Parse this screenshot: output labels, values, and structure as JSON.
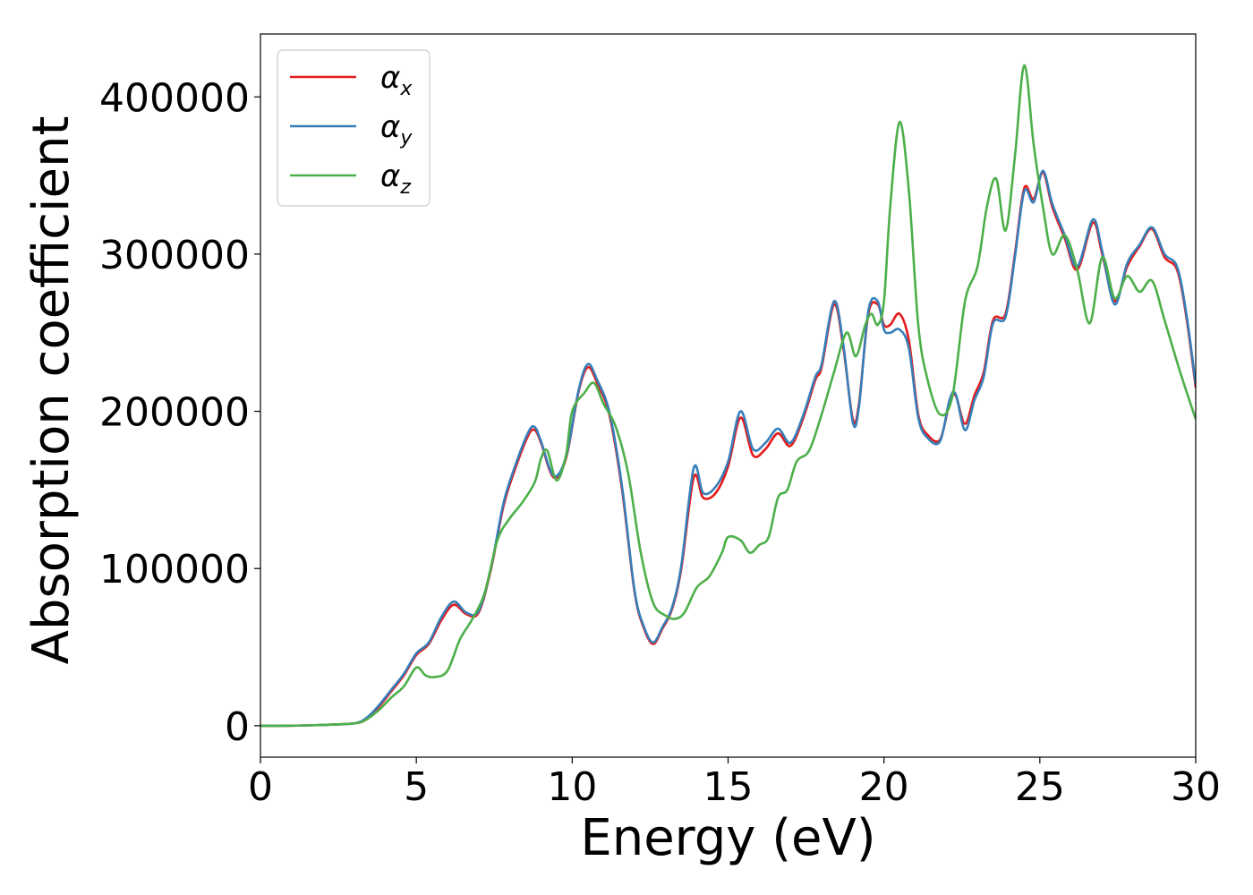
{
  "chart_data": {
    "type": "line",
    "xlabel": "Energy (eV)",
    "ylabel": "Absorption coefficient",
    "xlim": [
      0,
      30
    ],
    "ylim": [
      -20000,
      440000
    ],
    "xticks": [
      0,
      5,
      10,
      15,
      20,
      25,
      30
    ],
    "yticks": [
      0,
      100000,
      200000,
      300000,
      400000
    ],
    "xtick_labels": [
      "0",
      "5",
      "10",
      "15",
      "20",
      "25",
      "30"
    ],
    "ytick_labels": [
      "0",
      "100000",
      "200000",
      "300000",
      "400000"
    ],
    "grid": false,
    "legend_position": "top-left",
    "series": [
      {
        "name": "α_x",
        "label_base": "α",
        "label_sub": "x",
        "color": "#e41a1c",
        "x": [
          0,
          1,
          2,
          3,
          3.4,
          3.8,
          4.2,
          4.6,
          5.0,
          5.4,
          5.8,
          6.2,
          6.6,
          7.0,
          7.4,
          7.8,
          8.2,
          8.6,
          8.8,
          9.0,
          9.4,
          9.8,
          10.2,
          10.5,
          10.8,
          11.2,
          11.6,
          12.0,
          12.3,
          12.6,
          12.9,
          13.2,
          13.5,
          13.9,
          14.2,
          14.6,
          15.0,
          15.4,
          15.8,
          16.2,
          16.6,
          17.0,
          17.4,
          17.8,
          18.0,
          18.4,
          18.7,
          19.0,
          19.2,
          19.5,
          19.8,
          20.0,
          20.2,
          20.5,
          20.8,
          21.1,
          21.4,
          21.8,
          22.1,
          22.3,
          22.6,
          22.9,
          23.2,
          23.5,
          23.9,
          24.2,
          24.5,
          24.8,
          25.1,
          25.4,
          25.8,
          26.2,
          26.7,
          27.0,
          27.4,
          27.8,
          28.2,
          28.6,
          29.0,
          29.4,
          29.7,
          30.0
        ],
        "y": [
          0,
          0,
          500,
          1500,
          4000,
          12000,
          22000,
          32000,
          45000,
          52000,
          67000,
          77000,
          71000,
          72000,
          100000,
          140000,
          165000,
          185000,
          188000,
          180000,
          158000,
          170000,
          212000,
          228000,
          218000,
          197000,
          150000,
          85000,
          62000,
          52000,
          62000,
          74000,
          100000,
          158000,
          145000,
          148000,
          165000,
          196000,
          172000,
          176000,
          186000,
          178000,
          195000,
          220000,
          228000,
          268000,
          240000,
          195000,
          205000,
          262000,
          268000,
          255000,
          255000,
          262000,
          245000,
          198000,
          185000,
          182000,
          205000,
          210000,
          192000,
          210000,
          225000,
          258000,
          262000,
          300000,
          342000,
          335000,
          352000,
          330000,
          310000,
          290000,
          320000,
          300000,
          270000,
          292000,
          305000,
          316000,
          298000,
          290000,
          260000,
          215000
        ]
      },
      {
        "name": "α_y",
        "label_base": "α",
        "label_sub": "y",
        "color": "#377eb8",
        "x": [
          0,
          1,
          2,
          3,
          3.4,
          3.8,
          4.2,
          4.6,
          5.0,
          5.4,
          5.8,
          6.2,
          6.6,
          7.0,
          7.4,
          7.8,
          8.2,
          8.6,
          8.8,
          9.0,
          9.4,
          9.8,
          10.2,
          10.5,
          10.8,
          11.2,
          11.6,
          12.0,
          12.3,
          12.6,
          12.9,
          13.2,
          13.5,
          13.9,
          14.2,
          14.6,
          15.0,
          15.4,
          15.8,
          16.2,
          16.6,
          17.0,
          17.4,
          17.8,
          18.0,
          18.4,
          18.7,
          19.0,
          19.2,
          19.5,
          19.8,
          20.0,
          20.2,
          20.5,
          20.8,
          21.1,
          21.4,
          21.8,
          22.1,
          22.3,
          22.6,
          22.9,
          23.2,
          23.5,
          23.9,
          24.2,
          24.5,
          24.8,
          25.1,
          25.4,
          25.8,
          26.2,
          26.7,
          27.0,
          27.4,
          27.8,
          28.2,
          28.6,
          29.0,
          29.4,
          29.7,
          30.0
        ],
        "y": [
          0,
          0,
          500,
          1500,
          5000,
          13000,
          23000,
          33000,
          46000,
          53000,
          69000,
          79000,
          72000,
          73000,
          101000,
          142000,
          167000,
          187000,
          190000,
          181000,
          159000,
          171000,
          213000,
          230000,
          220000,
          199000,
          152000,
          86000,
          63000,
          53000,
          63000,
          75000,
          102000,
          164000,
          148000,
          152000,
          168000,
          200000,
          176000,
          180000,
          189000,
          180000,
          197000,
          222000,
          230000,
          270000,
          242000,
          193000,
          203000,
          264000,
          270000,
          252000,
          250000,
          252000,
          240000,
          196000,
          183000,
          181000,
          207000,
          211000,
          188000,
          207000,
          222000,
          256000,
          260000,
          298000,
          340000,
          333000,
          353000,
          332000,
          312000,
          292000,
          322000,
          302000,
          268000,
          294000,
          306000,
          317000,
          300000,
          292000,
          262000,
          217000
        ]
      },
      {
        "name": "α_z",
        "label_base": "α",
        "label_sub": "z",
        "color": "#4daf4a",
        "x": [
          0,
          1,
          2,
          3,
          3.4,
          3.8,
          4.2,
          4.6,
          5.0,
          5.3,
          5.6,
          6.0,
          6.4,
          6.8,
          7.2,
          7.6,
          8.0,
          8.4,
          8.8,
          9.0,
          9.2,
          9.5,
          9.8,
          10.0,
          10.4,
          10.7,
          11.0,
          11.4,
          11.8,
          12.2,
          12.6,
          13.0,
          13.3,
          13.6,
          14.0,
          14.4,
          14.8,
          15.0,
          15.4,
          15.7,
          16.0,
          16.3,
          16.6,
          16.9,
          17.2,
          17.6,
          18.0,
          18.4,
          18.8,
          19.1,
          19.4,
          19.6,
          19.8,
          20.0,
          20.2,
          20.5,
          20.8,
          21.1,
          21.4,
          21.8,
          22.2,
          22.6,
          23.0,
          23.3,
          23.6,
          23.9,
          24.2,
          24.5,
          24.8,
          25.1,
          25.4,
          25.8,
          26.2,
          26.6,
          27.0,
          27.4,
          27.8,
          28.2,
          28.6,
          29.0,
          29.5,
          30.0
        ],
        "y": [
          0,
          0,
          500,
          1500,
          4000,
          10000,
          18000,
          25000,
          37000,
          32000,
          31000,
          35000,
          55000,
          68000,
          85000,
          118000,
          132000,
          142000,
          155000,
          170000,
          175000,
          156000,
          172000,
          200000,
          212000,
          218000,
          205000,
          190000,
          160000,
          110000,
          78000,
          70000,
          68000,
          72000,
          88000,
          95000,
          110000,
          120000,
          118000,
          110000,
          115000,
          120000,
          145000,
          150000,
          168000,
          175000,
          198000,
          225000,
          250000,
          235000,
          255000,
          262000,
          255000,
          270000,
          330000,
          384000,
          340000,
          255000,
          220000,
          198000,
          210000,
          270000,
          292000,
          330000,
          348000,
          315000,
          362000,
          420000,
          370000,
          330000,
          300000,
          312000,
          290000,
          256000,
          298000,
          272000,
          286000,
          276000,
          283000,
          258000,
          225000,
          195000
        ]
      }
    ]
  }
}
